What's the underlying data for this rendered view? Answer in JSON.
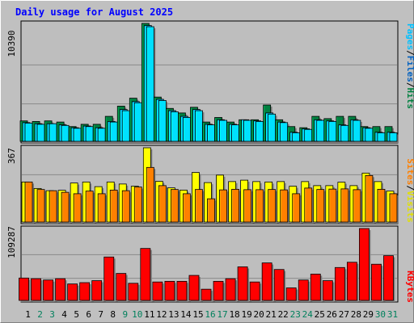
{
  "chart_data": [
    {
      "type": "bar",
      "title": "Daily usage for August 2025",
      "y_max_label": "10390",
      "ylim": [
        0,
        10390
      ],
      "axis_label_parts": [
        "Pages",
        "/",
        "Files",
        "/",
        "Hits"
      ],
      "categories": [
        "1",
        "2",
        "3",
        "4",
        "5",
        "6",
        "7",
        "8",
        "9",
        "10",
        "11",
        "12",
        "13",
        "14",
        "15",
        "16",
        "17",
        "18",
        "19",
        "20",
        "21",
        "22",
        "23",
        "24",
        "25",
        "26",
        "27",
        "28",
        "29",
        "30",
        "31"
      ],
      "weekend_days": [
        "2",
        "3",
        "9",
        "10",
        "16",
        "17",
        "23",
        "24",
        "30",
        "31"
      ],
      "series": [
        {
          "name": "Hits",
          "color": "#008040",
          "values": [
            1800,
            1750,
            1800,
            1700,
            1300,
            1500,
            1500,
            2200,
            3100,
            3800,
            10390,
            3900,
            2900,
            2500,
            3000,
            1700,
            2100,
            1700,
            1900,
            1900,
            3200,
            1900,
            1300,
            1200,
            2200,
            2000,
            2200,
            2200,
            1300,
            1300,
            1300
          ]
        },
        {
          "name": "Files",
          "color": "#00c0ff",
          "values": [
            1650,
            1550,
            1550,
            1450,
            1200,
            1350,
            1200,
            1750,
            2800,
            3500,
            10200,
            3700,
            2700,
            2200,
            2800,
            1500,
            1900,
            1500,
            1900,
            1800,
            2500,
            1700,
            800,
            1100,
            1900,
            1800,
            1450,
            1900,
            1200,
            800,
            800
          ]
        },
        {
          "name": "Pages",
          "color": "#00e0ff",
          "values": [
            1600,
            1500,
            1550,
            1400,
            1150,
            1300,
            1150,
            1700,
            2700,
            3400,
            10100,
            3600,
            2600,
            2100,
            2700,
            1450,
            1850,
            1450,
            1850,
            1750,
            2400,
            1650,
            750,
            1050,
            1850,
            1750,
            1400,
            1850,
            1150,
            750,
            750
          ]
        }
      ]
    },
    {
      "type": "bar",
      "y_max_label": "367",
      "ylim": [
        0,
        367
      ],
      "axis_label_parts": [
        "Sites",
        "/",
        "Visits"
      ],
      "series": [
        {
          "name": "Visits",
          "color": "#ffff00",
          "values": [
            198,
            166,
            155,
            157,
            193,
            198,
            175,
            198,
            188,
            177,
            367,
            201,
            169,
            158,
            245,
            195,
            232,
            200,
            207,
            200,
            198,
            200,
            177,
            200,
            180,
            180,
            197,
            180,
            242,
            200,
            153
          ]
        },
        {
          "name": "Sites",
          "color": "#ff8000",
          "values": [
            198,
            161,
            155,
            147,
            140,
            153,
            140,
            158,
            155,
            173,
            270,
            180,
            161,
            140,
            161,
            115,
            159,
            162,
            160,
            160,
            161,
            159,
            140,
            168,
            161,
            163,
            164,
            160,
            230,
            162,
            140
          ]
        }
      ]
    },
    {
      "type": "bar",
      "y_max_label": "109287",
      "ylim": [
        0,
        109287
      ],
      "axis_label_parts": [
        "KBytes"
      ],
      "series": [
        {
          "name": "KBytes",
          "color": "#ff0000",
          "values": [
            34000,
            33000,
            31000,
            33000,
            25000,
            27000,
            30000,
            66000,
            41000,
            26000,
            79000,
            28000,
            29000,
            29000,
            38000,
            17000,
            29000,
            33000,
            51000,
            28000,
            57000,
            47000,
            19000,
            31000,
            40000,
            30000,
            50000,
            58000,
            109287,
            55000,
            68000
          ]
        }
      ]
    }
  ],
  "colors": {
    "background": "#c0c0c0",
    "panel": "#bebebe",
    "title": "#0000ff",
    "weekday_label": "#000000",
    "weekend_label": "#00805c",
    "sep": "#000000"
  }
}
